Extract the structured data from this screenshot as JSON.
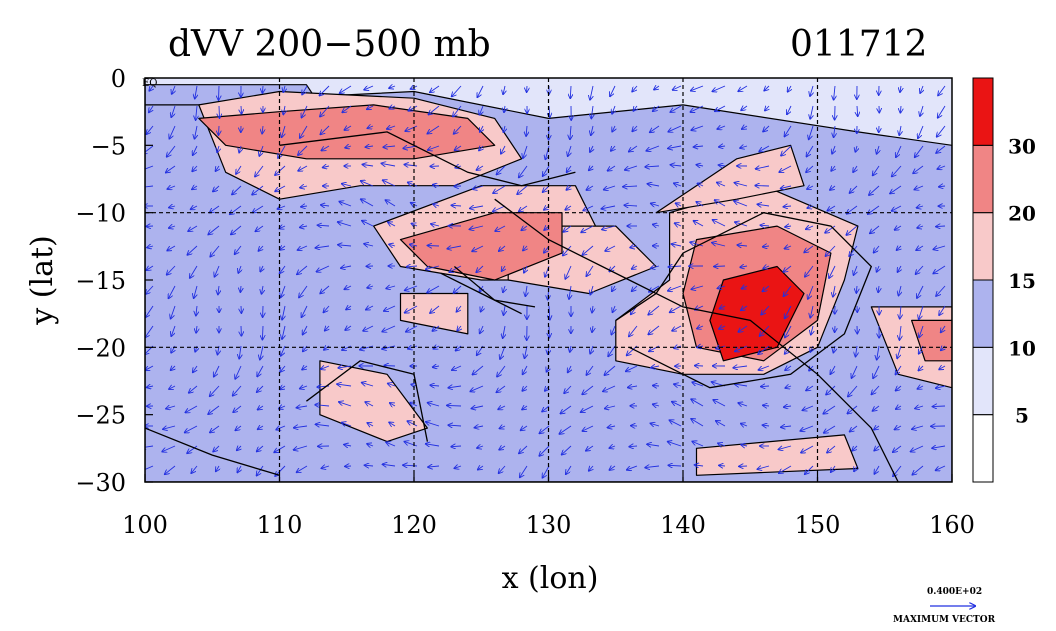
{
  "chart_data": {
    "type": "heatmap",
    "title_left": "dVV 200−500 mb",
    "title_right": "011712",
    "xlabel": "x (lon)",
    "ylabel": "y (lat)",
    "x_ticks": [
      "100",
      "110",
      "120",
      "130",
      "140",
      "150",
      "160"
    ],
    "x_tick_values": [
      100,
      110,
      120,
      130,
      140,
      150,
      160
    ],
    "y_ticks": [
      "0",
      "−5",
      "−10",
      "−15",
      "−20",
      "−25",
      "−30"
    ],
    "y_tick_values": [
      0,
      -5,
      -10,
      -15,
      -20,
      -25,
      -30
    ],
    "xlim": [
      100,
      160
    ],
    "ylim": [
      -30,
      0
    ],
    "grid": true,
    "grid_lon": [
      110,
      120,
      130,
      140,
      150
    ],
    "grid_lat": [
      -10,
      -20
    ],
    "colorbar": {
      "levels": [
        0,
        5,
        10,
        15,
        20,
        30,
        40
      ],
      "labels": [
        "5",
        "10",
        "15",
        "20",
        "30"
      ],
      "label_values": [
        5,
        10,
        15,
        20,
        30
      ],
      "colors": [
        "#ffffff",
        "#e2e5fa",
        "#adb3ee",
        "#f8c9c9",
        "#f08585",
        "#ea1414"
      ]
    },
    "regions": [
      {
        "level": 1,
        "points": [
          [
            100,
            0
          ],
          [
            160,
            0
          ],
          [
            160,
            -30
          ],
          [
            100,
            -30
          ]
        ]
      },
      {
        "level": 2,
        "points": [
          [
            100,
            -2
          ],
          [
            120,
            -1
          ],
          [
            130,
            -3
          ],
          [
            140,
            -2
          ],
          [
            153,
            -4
          ],
          [
            160,
            -5
          ],
          [
            160,
            -30
          ],
          [
            100,
            -30
          ]
        ]
      },
      {
        "level": 2,
        "points": [
          [
            100,
            -0.5
          ],
          [
            112,
            -0.5
          ],
          [
            113,
            -2
          ],
          [
            100,
            -2
          ]
        ]
      },
      {
        "level": 3,
        "points": [
          [
            104,
            -2
          ],
          [
            110,
            -1
          ],
          [
            120,
            -1.5
          ],
          [
            126,
            -3
          ],
          [
            128,
            -6
          ],
          [
            123,
            -8
          ],
          [
            116,
            -8
          ],
          [
            110,
            -9
          ],
          [
            106,
            -7
          ]
        ]
      },
      {
        "level": 3,
        "points": [
          [
            117,
            -11
          ],
          [
            125,
            -8
          ],
          [
            132,
            -8
          ],
          [
            134,
            -12
          ],
          [
            130,
            -15
          ],
          [
            125,
            -15
          ],
          [
            119,
            -14
          ]
        ]
      },
      {
        "level": 3,
        "points": [
          [
            127,
            -11
          ],
          [
            135,
            -11
          ],
          [
            138,
            -14
          ],
          [
            133,
            -16
          ],
          [
            127,
            -15
          ]
        ]
      },
      {
        "level": 3,
        "points": [
          [
            139,
            -10
          ],
          [
            146,
            -8
          ],
          [
            153,
            -11
          ],
          [
            152,
            -15
          ],
          [
            150,
            -20
          ],
          [
            146,
            -22
          ],
          [
            140,
            -22
          ],
          [
            135,
            -21
          ],
          [
            135,
            -18
          ],
          [
            139,
            -15
          ]
        ]
      },
      {
        "level": 3,
        "points": [
          [
            138,
            -10
          ],
          [
            144,
            -6
          ],
          [
            148,
            -5
          ],
          [
            149,
            -8
          ],
          [
            144,
            -9
          ]
        ]
      },
      {
        "level": 3,
        "points": [
          [
            113,
            -21
          ],
          [
            118,
            -22
          ],
          [
            121,
            -26
          ],
          [
            118,
            -27
          ],
          [
            113,
            -25
          ]
        ]
      },
      {
        "level": 3,
        "points": [
          [
            141,
            -27.5
          ],
          [
            152,
            -26.5
          ],
          [
            153,
            -29
          ],
          [
            141,
            -29.5
          ]
        ]
      },
      {
        "level": 3,
        "points": [
          [
            154,
            -17
          ],
          [
            160,
            -17
          ],
          [
            160,
            -23
          ],
          [
            156,
            -22
          ]
        ]
      },
      {
        "level": 3,
        "points": [
          [
            119,
            -16
          ],
          [
            124,
            -16
          ],
          [
            124,
            -19
          ],
          [
            119,
            -18
          ]
        ]
      },
      {
        "level": 4,
        "points": [
          [
            104,
            -3
          ],
          [
            110,
            -2.5
          ],
          [
            117,
            -2
          ],
          [
            124,
            -3
          ],
          [
            126,
            -5
          ],
          [
            120,
            -6
          ],
          [
            112,
            -6
          ],
          [
            106,
            -5
          ]
        ]
      },
      {
        "level": 4,
        "points": [
          [
            119,
            -12
          ],
          [
            126,
            -10
          ],
          [
            131,
            -10
          ],
          [
            131,
            -13
          ],
          [
            126,
            -15
          ],
          [
            121,
            -14
          ]
        ]
      },
      {
        "level": 4,
        "points": [
          [
            141,
            -12
          ],
          [
            147,
            -11
          ],
          [
            151,
            -13
          ],
          [
            150,
            -18
          ],
          [
            146,
            -21
          ],
          [
            141,
            -20
          ],
          [
            140,
            -16
          ]
        ]
      },
      {
        "level": 4,
        "points": [
          [
            157,
            -18
          ],
          [
            160,
            -18
          ],
          [
            160,
            -21
          ],
          [
            158,
            -21
          ]
        ]
      },
      {
        "level": 5,
        "points": [
          [
            143,
            -15
          ],
          [
            147,
            -14
          ],
          [
            149,
            -16
          ],
          [
            147,
            -20
          ],
          [
            143,
            -21
          ],
          [
            142,
            -18
          ]
        ]
      }
    ],
    "contours": [
      {
        "points": [
          [
            123,
            -14
          ],
          [
            126,
            -16.5
          ],
          [
            129,
            -17
          ]
        ]
      },
      {
        "points": [
          [
            122,
            -14.5
          ],
          [
            125,
            -16
          ],
          [
            128,
            -17.5
          ]
        ]
      },
      {
        "points": [
          [
            126,
            -9
          ],
          [
            130,
            -12
          ],
          [
            136,
            -15
          ],
          [
            140,
            -17
          ],
          [
            145,
            -18
          ],
          [
            150,
            -22
          ],
          [
            154,
            -26
          ],
          [
            156,
            -30
          ]
        ]
      },
      {
        "points": [
          [
            110,
            -5
          ],
          [
            118,
            -4
          ],
          [
            124,
            -7
          ],
          [
            128,
            -8
          ],
          [
            132,
            -7
          ]
        ]
      },
      {
        "points": [
          [
            136,
            -20
          ],
          [
            142,
            -23
          ],
          [
            148,
            -22
          ],
          [
            152,
            -19
          ],
          [
            154,
            -14
          ],
          [
            151,
            -11
          ],
          [
            146,
            -10
          ],
          [
            140,
            -13
          ],
          [
            138,
            -16
          ],
          [
            135,
            -18
          ]
        ]
      },
      {
        "points": [
          [
            112,
            -24
          ],
          [
            116,
            -21
          ],
          [
            120,
            -22
          ],
          [
            121,
            -27
          ]
        ]
      },
      {
        "points": [
          [
            100,
            -26
          ],
          [
            105,
            -28
          ],
          [
            110,
            -29.5
          ]
        ]
      }
    ],
    "vector_scale": {
      "label": "0.400E+02",
      "caption": "MAXIMUM VECTOR"
    },
    "corner_label": "EQ"
  }
}
